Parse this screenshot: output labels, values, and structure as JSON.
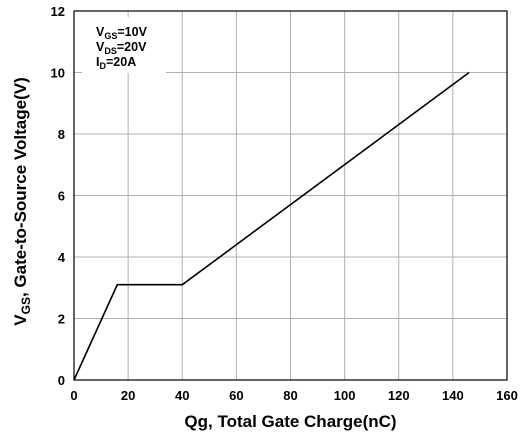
{
  "chart_data": {
    "type": "line",
    "title": "",
    "xlabel": "Qg, Total Gate Charge(nC)",
    "ylabel": {
      "main": "V",
      "sub": "GS",
      "rest": ", Gate-to-Source Voltage(V)"
    },
    "xlim": [
      0,
      160
    ],
    "ylim": [
      0,
      12
    ],
    "xticks": [
      0,
      20,
      40,
      60,
      80,
      100,
      120,
      140,
      160
    ],
    "yticks": [
      0,
      2,
      4,
      6,
      8,
      10,
      12
    ],
    "grid": true,
    "series": [
      {
        "x": [
          0,
          16,
          40,
          146
        ],
        "y": [
          0,
          3.1,
          3.1,
          10
        ]
      }
    ],
    "annotations": [
      {
        "main": "V",
        "sub": "GS",
        "rest": "=10V"
      },
      {
        "main": "V",
        "sub": "DS",
        "rest": "=20V"
      },
      {
        "main": "I",
        "sub": "D",
        "rest": "=20A"
      }
    ],
    "colors": {
      "line": "#000000",
      "grid": "#b0b0b0",
      "frame": "#000000"
    }
  }
}
